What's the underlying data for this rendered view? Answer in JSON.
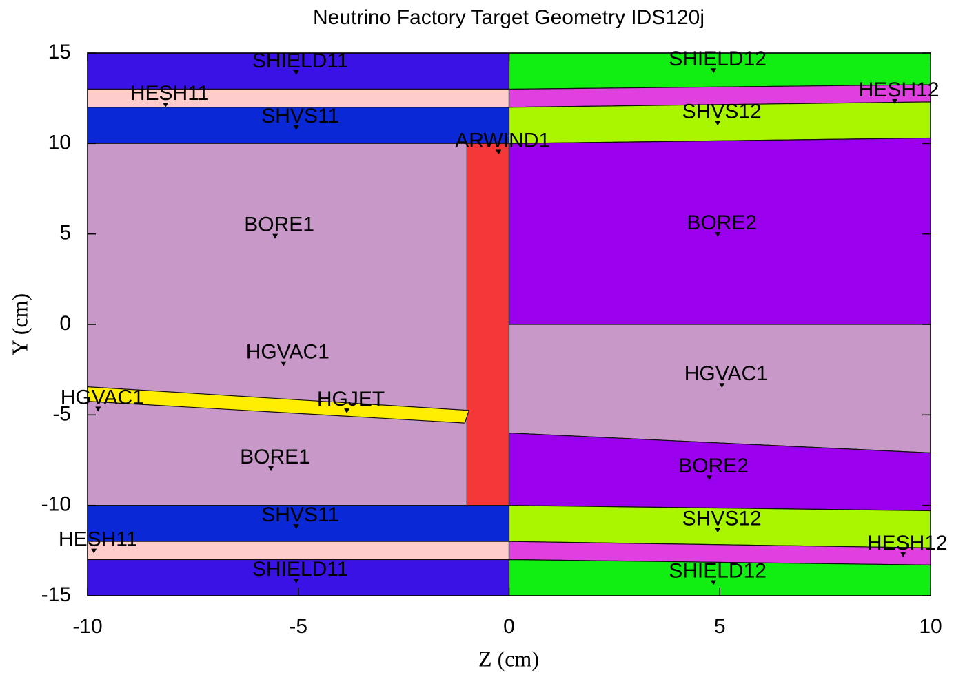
{
  "chart_data": {
    "type": "geometry",
    "title": "Neutrino Factory Target Geometry IDS120j",
    "xlabel": "Z (cm)",
    "ylabel": "Y (cm)",
    "xlim": [
      -10,
      10
    ],
    "ylim": [
      -15,
      15
    ],
    "xticks": [
      -10,
      -5,
      0,
      5,
      10
    ],
    "yticks": [
      -15,
      -10,
      -5,
      0,
      5,
      10,
      15
    ],
    "regions": [
      {
        "color": "#3b12e6",
        "x": [
          -10,
          0,
          0,
          -10
        ],
        "y": [
          13,
          13,
          15,
          15
        ]
      },
      {
        "color": "#ffcccc",
        "x": [
          -10,
          0,
          0,
          -10
        ],
        "y": [
          12,
          12,
          13,
          13
        ]
      },
      {
        "color": "#0a28d6",
        "x": [
          -10,
          0,
          0,
          -10
        ],
        "y": [
          10,
          10,
          12,
          12
        ]
      },
      {
        "color": "#c898c8",
        "x": [
          -10,
          0,
          0,
          -10
        ],
        "y": [
          -10,
          -10,
          10,
          10
        ]
      },
      {
        "color": "#f43838",
        "x": [
          -1,
          0,
          0,
          -1
        ],
        "y": [
          -10,
          -10,
          10,
          10
        ]
      },
      {
        "color": "#ffee00",
        "x": [
          -10,
          -0.95,
          -1.05,
          -10
        ],
        "y": [
          -3.45,
          -4.75,
          -5.45,
          -4.25
        ]
      },
      {
        "color": "#0a28d6",
        "x": [
          -10,
          0,
          0,
          -10
        ],
        "y": [
          -12,
          -12,
          -10,
          -10
        ]
      },
      {
        "color": "#ffcccc",
        "x": [
          -10,
          0,
          0,
          -10
        ],
        "y": [
          -13,
          -13,
          -12,
          -12
        ]
      },
      {
        "color": "#3b12e6",
        "x": [
          -10,
          0,
          0,
          -10
        ],
        "y": [
          -15,
          -15,
          -13,
          -13
        ]
      },
      {
        "color": "#11ee11",
        "x": [
          0,
          10,
          10,
          0
        ],
        "y": [
          13,
          13.25,
          15,
          15
        ]
      },
      {
        "color": "#e040e0",
        "x": [
          0,
          10,
          10,
          0
        ],
        "y": [
          12,
          12.3,
          13.25,
          13
        ]
      },
      {
        "color": "#aaf600",
        "x": [
          0,
          10,
          10,
          0
        ],
        "y": [
          10,
          10.3,
          12.3,
          12
        ]
      },
      {
        "color": "#9a00ee",
        "x": [
          0,
          10,
          10,
          0
        ],
        "y": [
          0,
          0,
          10.3,
          10
        ]
      },
      {
        "color": "#c898c8",
        "x": [
          0,
          10,
          10,
          0
        ],
        "y": [
          -6,
          -7.1,
          0,
          0
        ]
      },
      {
        "color": "#9a00ee",
        "x": [
          0,
          10,
          10,
          0
        ],
        "y": [
          -10,
          -10.3,
          -7.1,
          -6
        ]
      },
      {
        "color": "#aaf600",
        "x": [
          0,
          10,
          10,
          0
        ],
        "y": [
          -12,
          -12.35,
          -10.3,
          -10
        ]
      },
      {
        "color": "#e040e0",
        "x": [
          0,
          10,
          10,
          0
        ],
        "y": [
          -13,
          -13.3,
          -12.35,
          -12
        ]
      },
      {
        "color": "#11ee11",
        "x": [
          0,
          10,
          10,
          0
        ],
        "y": [
          -15,
          -15,
          -13.3,
          -13
        ]
      }
    ],
    "labels": [
      {
        "text": "SHIELD11",
        "x": -5.05,
        "y": 13.9
      },
      {
        "text": "HESH11",
        "x": -8.15,
        "y": 12.1
      },
      {
        "text": "SHVS11",
        "x": -5.05,
        "y": 10.85
      },
      {
        "text": "ARWIND1",
        "x": -0.25,
        "y": 9.5
      },
      {
        "text": "SHIELD12",
        "x": 4.85,
        "y": 14.0
      },
      {
        "text": "HESH12",
        "x": 9.15,
        "y": 12.3
      },
      {
        "text": "SHVS12",
        "x": 4.95,
        "y": 11.1
      },
      {
        "text": "BORE1",
        "x": -5.55,
        "y": 4.85
      },
      {
        "text": "BORE2",
        "x": 4.95,
        "y": 4.95
      },
      {
        "text": "HGVAC1",
        "x": -5.35,
        "y": -2.2
      },
      {
        "text": "HGVAC1",
        "x": 5.05,
        "y": -3.4
      },
      {
        "text": "HGVAC1",
        "x": -9.75,
        "y": -4.7
      },
      {
        "text": "HGJET",
        "x": -3.85,
        "y": -4.8
      },
      {
        "text": "BORE1",
        "x": -5.65,
        "y": -8.0
      },
      {
        "text": "BORE2",
        "x": 4.75,
        "y": -8.5
      },
      {
        "text": "SHVS11",
        "x": -5.05,
        "y": -11.2
      },
      {
        "text": "SHVS12",
        "x": 4.95,
        "y": -11.4
      },
      {
        "text": "HESH11",
        "x": -9.85,
        "y": -12.55
      },
      {
        "text": "HESH12",
        "x": 9.35,
        "y": -12.75
      },
      {
        "text": "SHIELD11",
        "x": -5.05,
        "y": -14.2
      },
      {
        "text": "SHIELD12",
        "x": 4.85,
        "y": -14.3
      }
    ]
  }
}
